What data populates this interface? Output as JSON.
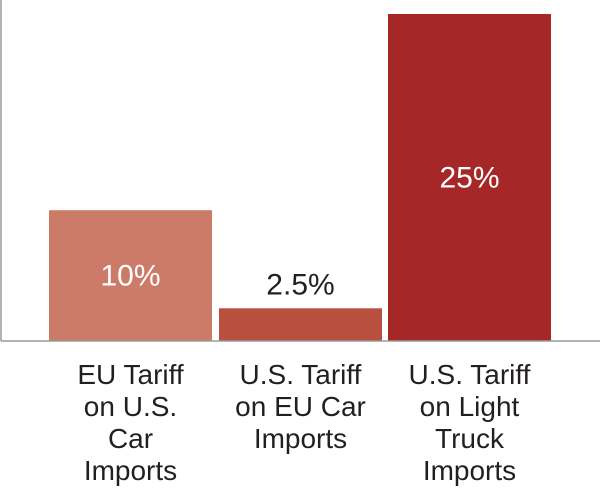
{
  "chart_data": {
    "type": "bar",
    "title": "",
    "xlabel": "",
    "ylabel": "",
    "ylim": [
      0,
      26
    ],
    "grid": false,
    "categories": [
      "EU Tariff on U.S. Car Imports",
      "U.S. Tariff on EU Car Imports",
      "U.S. Tariff on Light Truck Imports"
    ],
    "category_lines": [
      [
        "EU Tariff",
        "on U.S.",
        "Car",
        "Imports"
      ],
      [
        "U.S. Tariff",
        "on EU Car",
        "Imports"
      ],
      [
        "U.S. Tariff",
        "on Light",
        "Truck",
        "Imports"
      ]
    ],
    "values": [
      10,
      2.5,
      25
    ],
    "data_labels": [
      "10%",
      "2.5%",
      "25%"
    ],
    "colors": [
      "#cd7b69",
      "#b9503f",
      "#a62728"
    ],
    "label_colors": [
      "#ffffff",
      "#231f20",
      "#ffffff"
    ],
    "label_positions": [
      "inside",
      "above",
      "inside"
    ]
  }
}
